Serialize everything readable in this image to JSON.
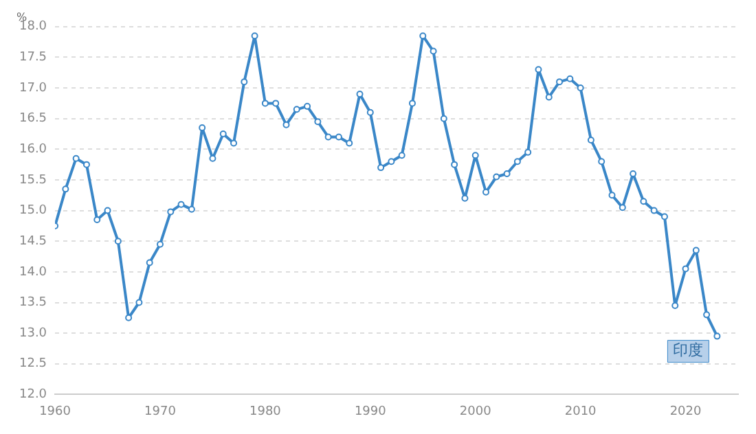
{
  "chart_data": {
    "type": "line",
    "ylabel": "%",
    "x": [
      1960,
      1961,
      1962,
      1963,
      1964,
      1965,
      1966,
      1967,
      1968,
      1969,
      1970,
      1971,
      1972,
      1973,
      1974,
      1975,
      1976,
      1977,
      1978,
      1979,
      1980,
      1981,
      1982,
      1983,
      1984,
      1985,
      1986,
      1987,
      1988,
      1989,
      1990,
      1991,
      1992,
      1993,
      1994,
      1995,
      1996,
      1997,
      1998,
      1999,
      2000,
      2001,
      2002,
      2003,
      2004,
      2005,
      2006,
      2007,
      2008,
      2009,
      2010,
      2011,
      2012,
      2013,
      2014,
      2015,
      2016,
      2017,
      2018,
      2019,
      2020,
      2021,
      2022,
      2023
    ],
    "series": [
      {
        "name": "印度",
        "color": "#3a87c8",
        "values": [
          14.75,
          15.35,
          15.85,
          15.75,
          14.85,
          15.0,
          14.5,
          13.25,
          13.5,
          14.15,
          14.45,
          14.98,
          15.1,
          15.02,
          16.35,
          15.85,
          16.25,
          16.1,
          17.1,
          17.85,
          16.75,
          16.75,
          16.4,
          16.65,
          16.7,
          16.45,
          16.2,
          16.2,
          16.1,
          16.9,
          16.6,
          15.7,
          15.8,
          15.9,
          16.75,
          17.85,
          17.6,
          16.5,
          15.75,
          15.2,
          15.9,
          15.3,
          15.55,
          15.6,
          15.8,
          15.95,
          17.3,
          16.85,
          17.1,
          17.15,
          17.0,
          16.15,
          15.8,
          15.25,
          15.05,
          15.6,
          15.15,
          15.0,
          14.9,
          13.45,
          14.05,
          14.35,
          13.3,
          12.95
        ]
      }
    ],
    "xlim": [
      1960,
      2025
    ],
    "xticks": [
      1960,
      1970,
      1980,
      1990,
      2000,
      2010,
      2020
    ],
    "ylim": [
      12,
      18
    ],
    "yticks": [
      {
        "value": 12,
        "label": "12.0"
      },
      12.5,
      {
        "value": 13,
        "label": "13.0"
      },
      13.5,
      {
        "value": 14,
        "label": "14.0"
      },
      14.5,
      {
        "value": 15,
        "label": "15.0"
      },
      15.5,
      {
        "value": 16,
        "label": "16.0"
      },
      16.5,
      {
        "value": 17,
        "label": "17.0"
      },
      17.5,
      {
        "value": 18,
        "label": "18.0"
      }
    ],
    "grid": "y",
    "marker": "circle",
    "line_style": "solid",
    "legend": false
  }
}
